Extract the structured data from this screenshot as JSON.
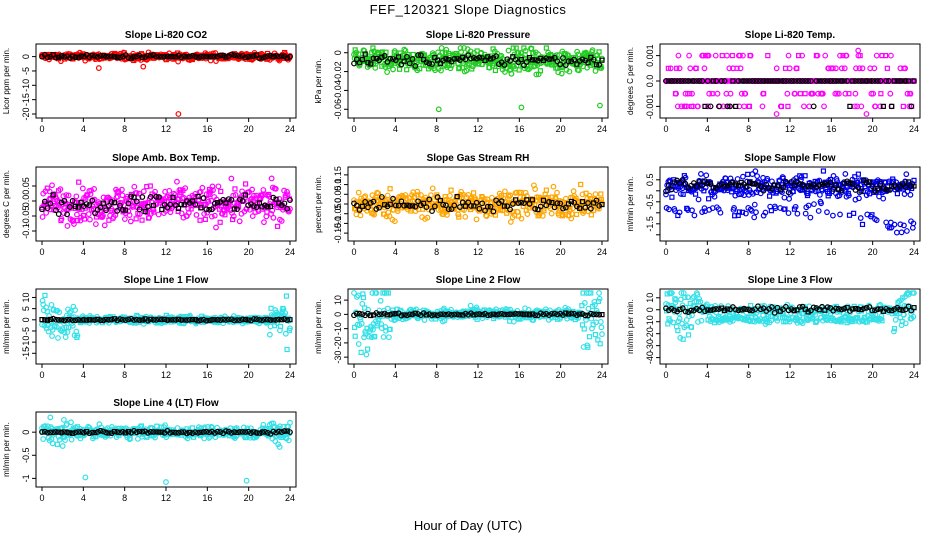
{
  "page": {
    "title": "FEF_120321  Slope Diagnostics",
    "xlabel": "Hour of Day (UTC)"
  },
  "colors": {
    "red": "#ff0000",
    "green": "#22cc22",
    "magenta": "#ff00ff",
    "orange": "#ffa500",
    "blue": "#0000ee",
    "cyan": "#33e0e8",
    "black": "#000000"
  },
  "chart_data": [
    {
      "type": "scatter",
      "title": "Slope Li-820 CO2",
      "ylabel": "Licor ppm per min.",
      "color": "red",
      "xlim": [
        0,
        24
      ],
      "xticks": [
        0,
        4,
        8,
        12,
        16,
        20,
        24
      ],
      "ylim": [
        -20,
        3
      ],
      "yticks": [
        0,
        -5,
        -10,
        -15,
        -20
      ],
      "center": 0,
      "spread": 1.2,
      "outliers": [
        [
          13.2,
          -20
        ],
        [
          5.5,
          -4
        ],
        [
          9.8,
          -3.5
        ]
      ]
    },
    {
      "type": "scatter",
      "title": "Slope Li-820 Pressure",
      "ylabel": "kPa per min.",
      "color": "green",
      "xlim": [
        0,
        24
      ],
      "xticks": [
        0,
        4,
        8,
        12,
        16,
        20,
        24
      ],
      "ylim": [
        -0.065,
        0.005
      ],
      "yticks": [
        0,
        -0.02,
        -0.04,
        -0.06
      ],
      "center": -0.008,
      "spread": 0.012,
      "outliers": [
        [
          8.2,
          -0.06
        ],
        [
          16.2,
          -0.058
        ],
        [
          23.8,
          -0.056
        ],
        [
          1,
          0.002
        ]
      ]
    },
    {
      "type": "scatter",
      "title": "Slope Li-820 Temp.",
      "ylabel": "degrees C per min.",
      "color": "magenta",
      "xlim": [
        0,
        24
      ],
      "xticks": [
        0,
        4,
        8,
        12,
        16,
        20,
        24
      ],
      "ylim": [
        -0.0013,
        0.0013
      ],
      "yticks": [
        0.001,
        0.0,
        -0.001
      ],
      "levels": [
        -0.001,
        -0.0005,
        0,
        0.0005,
        0.001
      ],
      "outliers": [
        [
          18.6,
          0.0012
        ],
        [
          10.7,
          -0.0013
        ],
        [
          19.4,
          -0.0013
        ]
      ]
    },
    {
      "type": "scatter",
      "title": "Slope Amb. Box Temp.",
      "ylabel": "degrees C per min.",
      "color": "magenta",
      "xlim": [
        0,
        24
      ],
      "xticks": [
        0,
        4,
        8,
        12,
        16,
        20,
        24
      ],
      "ylim": [
        -0.12,
        0.1
      ],
      "yticks": [
        0.05,
        0.0,
        -0.05,
        -0.1
      ],
      "center": -0.01,
      "spread": 0.06,
      "outliers": []
    },
    {
      "type": "scatter",
      "title": "Slope Gas Stream RH",
      "ylabel": "percent per min.",
      "color": "orange",
      "xlim": [
        0,
        24
      ],
      "xticks": [
        0,
        4,
        8,
        12,
        16,
        20,
        24
      ],
      "ylim": [
        -0.17,
        0.17
      ],
      "yticks": [
        0.15,
        0.1,
        0.05,
        0.0,
        -0.05,
        -0.1,
        -0.15
      ],
      "center": 0.0,
      "spread": 0.07,
      "outliers": []
    },
    {
      "type": "scatter",
      "title": "Slope Sample Flow",
      "ylabel": "ml/min per min.",
      "color": "blue",
      "xlim": [
        0,
        24
      ],
      "xticks": [
        0,
        4,
        8,
        12,
        16,
        20,
        24
      ],
      "ylim": [
        -2.1,
        0.9
      ],
      "yticks": [
        0.5,
        -0.5,
        -1.5
      ],
      "ytick_extra": [
        0,
        -1,
        -2
      ],
      "center": 0.2,
      "spread": 0.3,
      "outliers": []
    },
    {
      "type": "scatter",
      "title": "Slope Line 1 Flow",
      "ylabel": "ml/min per min.",
      "color": "cyan",
      "xlim": [
        0,
        24
      ],
      "xticks": [
        0,
        4,
        8,
        12,
        16,
        20,
        24
      ],
      "ylim": [
        -18,
        12
      ],
      "yticks": [
        10,
        5,
        0,
        -5,
        -10,
        -15
      ],
      "center": 0,
      "spread": 0.8,
      "outliers": []
    },
    {
      "type": "scatter",
      "title": "Slope Line 2 Flow",
      "ylabel": "ml/min per min.",
      "color": "cyan",
      "xlim": [
        0,
        24
      ],
      "xticks": [
        0,
        4,
        8,
        12,
        16,
        20,
        24
      ],
      "ylim": [
        -32,
        15
      ],
      "yticks": [
        10,
        0,
        -10,
        -20,
        -30
      ],
      "center": 0,
      "spread": 2,
      "outliers": []
    },
    {
      "type": "scatter",
      "title": "Slope Line 3 Flow",
      "ylabel": "ml/min per min.",
      "color": "cyan",
      "xlim": [
        0,
        24
      ],
      "xticks": [
        0,
        4,
        8,
        12,
        16,
        20,
        24
      ],
      "ylim": [
        -42,
        14
      ],
      "yticks": [
        10,
        0,
        -10,
        -20,
        -30,
        -40
      ],
      "center": 0,
      "spread": 2,
      "outliers": []
    },
    {
      "type": "scatter",
      "title": "Slope Line 4 (LT) Flow",
      "ylabel": "ml/min per min.",
      "color": "cyan",
      "xlim": [
        0,
        24
      ],
      "xticks": [
        0,
        4,
        8,
        12,
        16,
        20,
        24
      ],
      "ylim": [
        -1.1,
        0.35
      ],
      "yticks": [
        0.0,
        -0.5,
        -1.0
      ],
      "center": 0,
      "spread": 0.06,
      "outliers": [
        [
          4.2,
          -0.98
        ],
        [
          12,
          -1.08
        ],
        [
          19.8,
          -1.05
        ],
        [
          2,
          -0.3
        ],
        [
          23,
          -0.32
        ]
      ]
    }
  ]
}
